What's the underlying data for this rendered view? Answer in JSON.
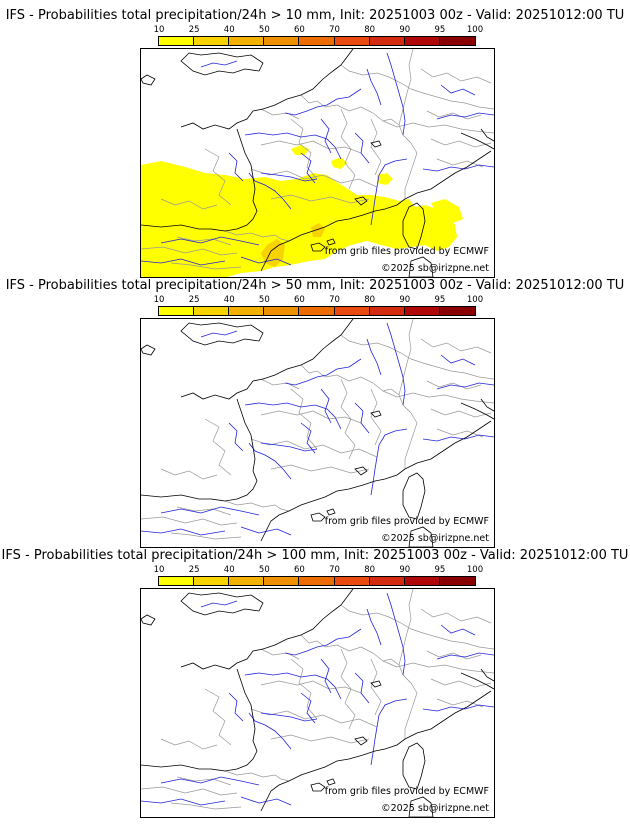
{
  "legend": {
    "ticks": [
      "10",
      "25",
      "40",
      "50",
      "60",
      "70",
      "80",
      "90",
      "95",
      "100"
    ],
    "colors": [
      "#ffff00",
      "#f7d400",
      "#f2b000",
      "#ef9000",
      "#ec6c00",
      "#e84a10",
      "#d42a10",
      "#b00808",
      "#8a0000",
      "#5c0000"
    ]
  },
  "panels": [
    {
      "title": "IFS - Probabilities total precipitation/24h > 10 mm, Init: 20251003 00z - Valid: 20251012:00 TU",
      "show_precip": true
    },
    {
      "title": "IFS - Probabilities total precipitation/24h > 50 mm, Init: 20251003 00z - Valid: 20251012:00 TU",
      "show_precip": false
    },
    {
      "title": "IFS - Probabilities total precipitation/24h > 100 mm, Init: 20251003 00z - Valid: 20251012:00 TU",
      "show_precip": false
    }
  ],
  "credits": {
    "source": "from grib files provided by ECMWF",
    "copyright": "©2025 sb@irizpne.net"
  },
  "map_colors": {
    "coast": "#000000",
    "borders": "#999999",
    "rivers": "#2222dd",
    "precip_low": "#ffff00",
    "precip_mid": "#f7d400"
  }
}
